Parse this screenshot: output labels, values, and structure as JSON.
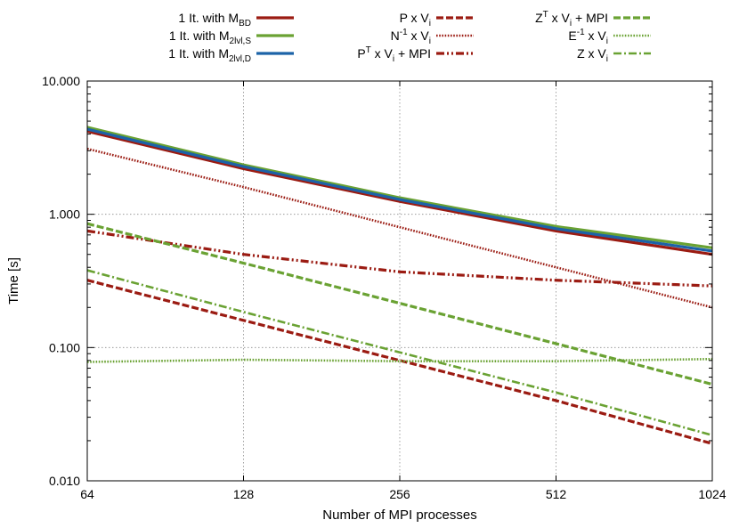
{
  "chart_data": {
    "type": "line",
    "title": "",
    "xlabel": "Number of MPI processes",
    "ylabel": "Time [s]",
    "xscale": "log2",
    "yscale": "log10",
    "xlim": [
      64,
      1024
    ],
    "ylim": [
      0.01,
      10
    ],
    "x": [
      64,
      128,
      256,
      512,
      1024
    ],
    "x_ticks": [
      "64",
      "128",
      "256",
      "512",
      "1024"
    ],
    "y_ticks": [
      {
        "value": 0.01,
        "label": "0.010"
      },
      {
        "value": 0.1,
        "label": "0.100"
      },
      {
        "value": 1,
        "label": "1.000"
      },
      {
        "value": 10,
        "label": "10.000"
      }
    ],
    "grid": true,
    "legend_position": "top",
    "series": [
      {
        "name": "1 It. with M",
        "sub": "BD",
        "sup": "",
        "tail": "",
        "tailsub": "",
        "color": "#9b1b12",
        "dash": "solid",
        "width": 3.2,
        "column": 0,
        "values": [
          4.2,
          2.2,
          1.25,
          0.75,
          0.5
        ]
      },
      {
        "name": "1 It. with M",
        "sub": "2lvl,S",
        "sup": "",
        "tail": "",
        "tailsub": "",
        "color": "#6aa233",
        "dash": "solid",
        "width": 3.2,
        "column": 0,
        "values": [
          4.5,
          2.35,
          1.33,
          0.81,
          0.56
        ]
      },
      {
        "name": "1 It. with M",
        "sub": "2lvl,D",
        "sup": "",
        "tail": "",
        "tailsub": "",
        "color": "#1c63a8",
        "dash": "solid",
        "width": 3.2,
        "column": 0,
        "values": [
          4.35,
          2.28,
          1.29,
          0.78,
          0.53
        ]
      },
      {
        "name": "P x V",
        "sub": "i",
        "sup": "",
        "tail": "",
        "tailsub": "",
        "color": "#9b1b12",
        "dash": "dashed",
        "width": 3.2,
        "column": 1,
        "values": [
          0.32,
          0.16,
          0.08,
          0.04,
          0.019
        ]
      },
      {
        "name": "N",
        "sub": "",
        "sup": "-1",
        "tail": " x V",
        "tailsub": "i",
        "color": "#9b1b12",
        "dash": "dotted",
        "width": 2.6,
        "column": 1,
        "values": [
          3.1,
          1.6,
          0.8,
          0.4,
          0.2
        ]
      },
      {
        "name": "P",
        "sub": "",
        "sup": "T",
        "tail": " x V",
        "tailsub": "i",
        "extra": " + MPI",
        "color": "#9b1b12",
        "dash": "dashdotdot",
        "width": 3.2,
        "column": 1,
        "values": [
          0.75,
          0.5,
          0.37,
          0.32,
          0.29
        ]
      },
      {
        "name": "Z",
        "sub": "",
        "sup": "T",
        "tail": " x V",
        "tailsub": "i",
        "extra": " + MPI",
        "color": "#6aa233",
        "dash": "dashed",
        "width": 3.2,
        "column": 2,
        "values": [
          0.85,
          0.43,
          0.215,
          0.107,
          0.053
        ]
      },
      {
        "name": "E",
        "sub": "",
        "sup": "-1",
        "tail": " x V",
        "tailsub": "i",
        "color": "#6aa233",
        "dash": "dotted",
        "width": 2.6,
        "column": 2,
        "values": [
          0.078,
          0.081,
          0.079,
          0.079,
          0.082
        ]
      },
      {
        "name": "Z x V",
        "sub": "i",
        "sup": "",
        "tail": "",
        "tailsub": "",
        "color": "#6aa233",
        "dash": "dashdot",
        "width": 2.6,
        "column": 2,
        "values": [
          0.38,
          0.185,
          0.092,
          0.046,
          0.022
        ]
      }
    ]
  }
}
